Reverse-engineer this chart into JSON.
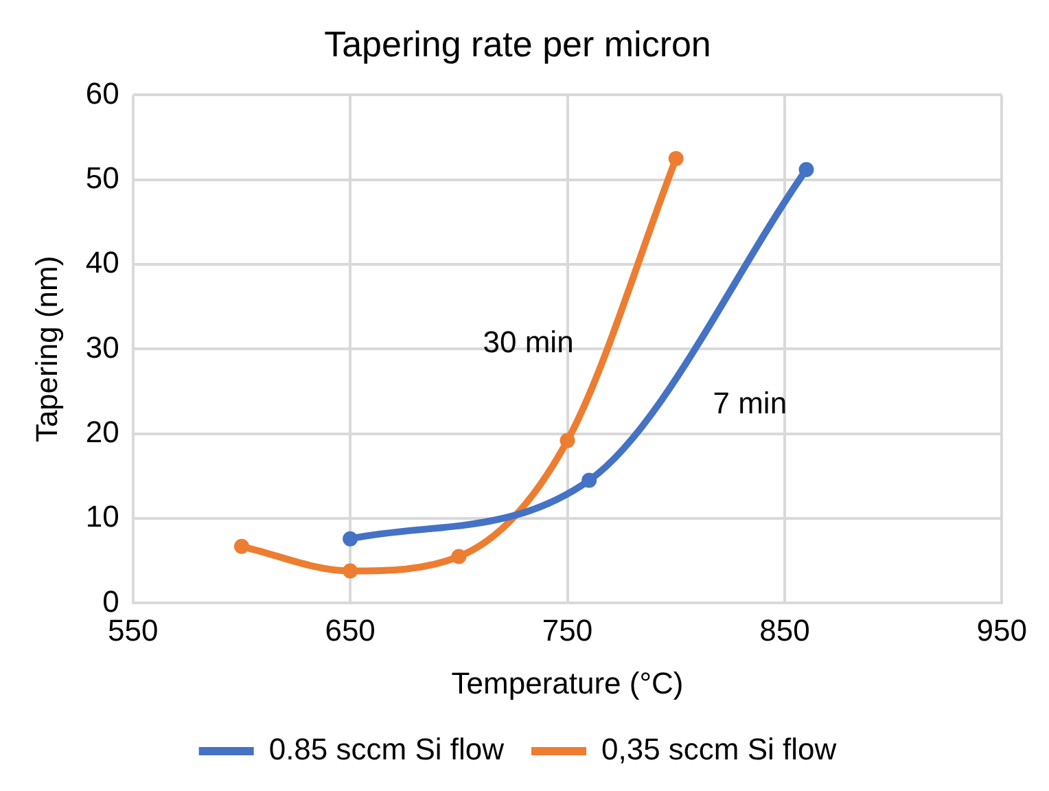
{
  "chart_data": {
    "type": "line",
    "title": "Tapering rate per micron",
    "xlabel": "Temperature (°C)",
    "ylabel": "Tapering (nm)",
    "xlim": [
      550,
      950
    ],
    "xticks": [
      550,
      650,
      750,
      850,
      950
    ],
    "ylim": [
      0,
      60
    ],
    "yticks": [
      0,
      10,
      20,
      30,
      40,
      50,
      60
    ],
    "grid": true,
    "legend": "bottom",
    "marker": "circle",
    "line_style": "solid",
    "series": [
      {
        "name": "0.85 sccm Si flow",
        "color": "#4472c4",
        "x": [
          650,
          760,
          860
        ],
        "values": [
          7.6,
          14.5,
          51.2
        ]
      },
      {
        "name": "0,35 sccm Si flow",
        "color": "#ed7d31",
        "x": [
          600,
          650,
          700,
          750,
          800
        ],
        "values": [
          6.7,
          3.8,
          5.5,
          19.2,
          52.5
        ]
      }
    ],
    "annotations": [
      "30 min",
      "7 min"
    ]
  }
}
